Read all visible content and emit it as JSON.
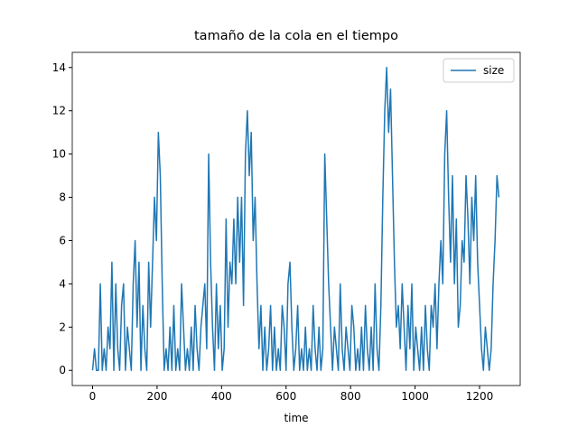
{
  "chart_data": {
    "type": "line",
    "title": "tamaño de la cola en el tiempo",
    "xlabel": "time",
    "x": [
      0,
      6,
      12,
      18,
      24,
      30,
      36,
      42,
      48,
      54,
      60,
      66,
      72,
      78,
      84,
      90,
      96,
      102,
      108,
      114,
      120,
      126,
      132,
      138,
      144,
      150,
      156,
      162,
      168,
      174,
      180,
      186,
      192,
      198,
      204,
      210,
      216,
      222,
      228,
      234,
      240,
      246,
      252,
      258,
      264,
      270,
      276,
      282,
      288,
      294,
      300,
      306,
      312,
      318,
      324,
      330,
      336,
      342,
      348,
      354,
      360,
      366,
      372,
      378,
      384,
      390,
      396,
      402,
      408,
      414,
      420,
      426,
      432,
      438,
      444,
      450,
      456,
      462,
      468,
      474,
      480,
      486,
      492,
      498,
      504,
      510,
      516,
      522,
      528,
      534,
      540,
      546,
      552,
      558,
      564,
      570,
      576,
      582,
      588,
      594,
      600,
      606,
      612,
      618,
      624,
      630,
      636,
      642,
      648,
      654,
      660,
      666,
      672,
      678,
      684,
      690,
      696,
      702,
      708,
      714,
      720,
      726,
      732,
      738,
      744,
      750,
      756,
      762,
      768,
      774,
      780,
      786,
      792,
      798,
      804,
      810,
      816,
      822,
      828,
      834,
      840,
      846,
      852,
      858,
      864,
      870,
      876,
      882,
      888,
      894,
      900,
      906,
      912,
      918,
      924,
      930,
      936,
      942,
      948,
      954,
      960,
      966,
      972,
      978,
      984,
      990,
      996,
      1002,
      1008,
      1014,
      1020,
      1026,
      1032,
      1038,
      1044,
      1050,
      1056,
      1062,
      1068,
      1074,
      1080,
      1086,
      1092,
      1098,
      1104,
      1110,
      1116,
      1122,
      1128,
      1134,
      1140,
      1146,
      1152,
      1158,
      1164,
      1170,
      1176,
      1182,
      1188,
      1194,
      1200,
      1206,
      1212,
      1218,
      1224,
      1230,
      1236,
      1242,
      1248,
      1254,
      1260
    ],
    "series": [
      {
        "name": "size",
        "color": "#1f77b4",
        "values": [
          0,
          1,
          0,
          0,
          4,
          0,
          1,
          0,
          2,
          1,
          5,
          0,
          4,
          1,
          0,
          3,
          4,
          0,
          2,
          1,
          0,
          4,
          6,
          2,
          5,
          0,
          3,
          1,
          0,
          5,
          2,
          5,
          8,
          6,
          11,
          9,
          4,
          0,
          1,
          0,
          2,
          0,
          3,
          0,
          1,
          0,
          4,
          2,
          0,
          1,
          0,
          2,
          0,
          3,
          1,
          0,
          2,
          3,
          4,
          1,
          10,
          5,
          2,
          0,
          4,
          1,
          3,
          0,
          1,
          7,
          2,
          5,
          4,
          7,
          4,
          8,
          5,
          8,
          3,
          10,
          12,
          9,
          11,
          6,
          8,
          4,
          1,
          3,
          0,
          2,
          0,
          1,
          3,
          0,
          2,
          0,
          1,
          0,
          3,
          2,
          0,
          4,
          5,
          2,
          0,
          1,
          3,
          0,
          1,
          0,
          2,
          0,
          1,
          0,
          3,
          1,
          0,
          2,
          0,
          1,
          10,
          7,
          4,
          2,
          0,
          2,
          1,
          0,
          4,
          1,
          0,
          2,
          1,
          0,
          3,
          2,
          0,
          1,
          0,
          2,
          0,
          3,
          1,
          0,
          2,
          0,
          4,
          1,
          0,
          3,
          8,
          12,
          14,
          11,
          13,
          9,
          5,
          2,
          3,
          1,
          4,
          2,
          0,
          3,
          1,
          4,
          0,
          2,
          1,
          0,
          2,
          0,
          3,
          1,
          0,
          3,
          2,
          4,
          1,
          4,
          6,
          4,
          10,
          12,
          8,
          5,
          9,
          4,
          7,
          2,
          3,
          6,
          5,
          9,
          7,
          4,
          8,
          6,
          9,
          5,
          3,
          1,
          0,
          2,
          1,
          0,
          1,
          4,
          6,
          9,
          8
        ]
      }
    ],
    "xlim": [
      -63,
      1326
    ],
    "ylim": [
      -0.7,
      14.7
    ],
    "xticks": [
      0,
      200,
      400,
      600,
      800,
      1000,
      1200
    ],
    "yticks": [
      0,
      2,
      4,
      6,
      8,
      10,
      12,
      14
    ],
    "legend": "upper right"
  }
}
